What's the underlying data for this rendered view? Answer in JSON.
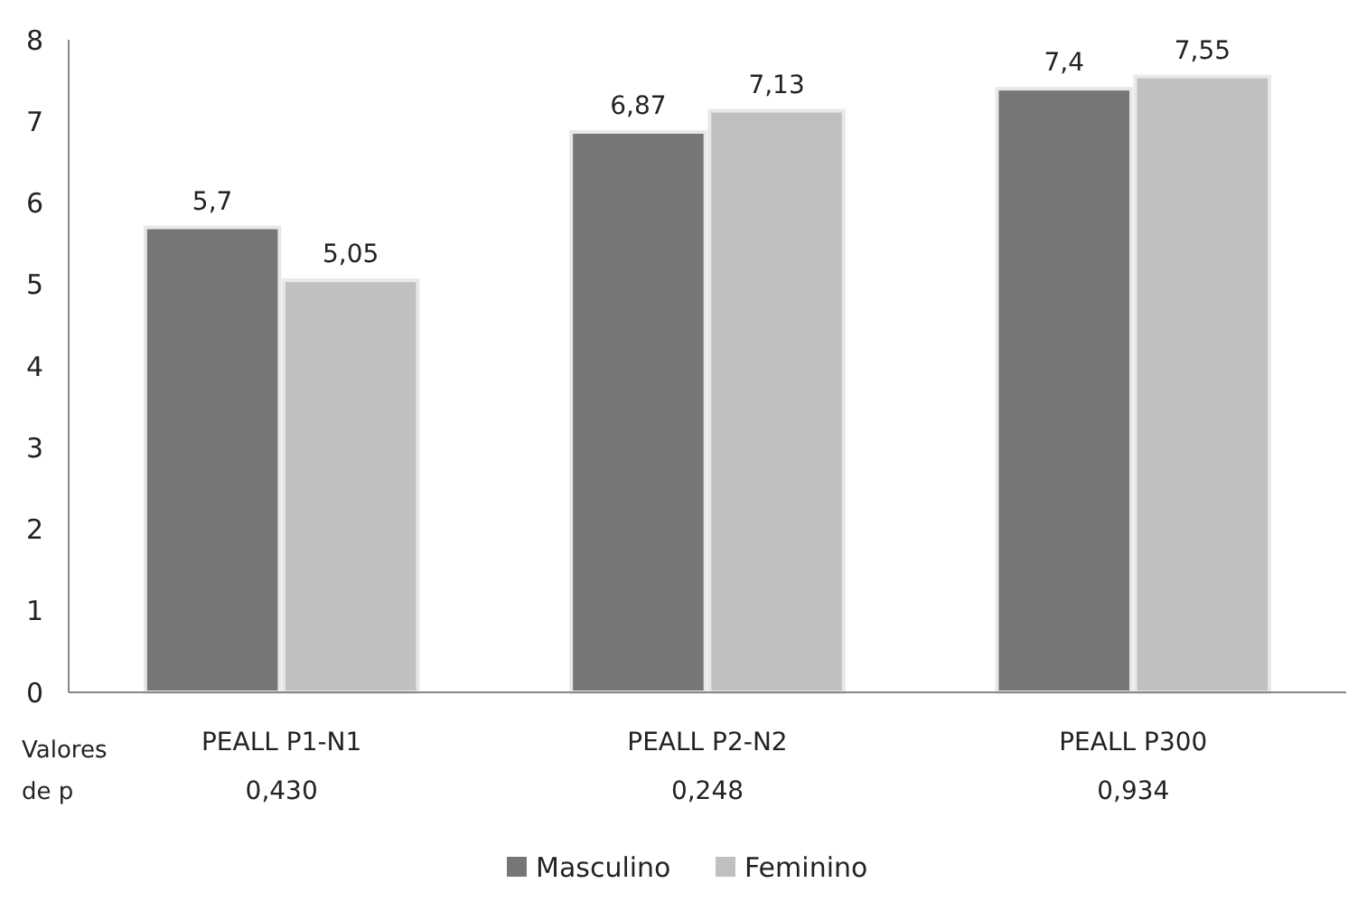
{
  "chart_data": {
    "type": "bar",
    "categories": [
      "PEALL P1-N1\n0,430",
      "PEALL P2-N2\n0,248",
      "PEALL P300\n0,934"
    ],
    "series": [
      {
        "name": "Masculino",
        "color": "#767676",
        "values": [
          5.7,
          6.87,
          7.4
        ],
        "value_labels": [
          "5,7",
          "6,87",
          "7,4"
        ]
      },
      {
        "name": "Feminino",
        "color": "#c0c0c0",
        "values": [
          5.05,
          7.13,
          7.55
        ],
        "value_labels": [
          "5,05",
          "7,13",
          "7,55"
        ]
      }
    ],
    "ylim": [
      0,
      8
    ],
    "yticks": [
      0,
      1,
      2,
      3,
      4,
      5,
      6,
      7,
      8
    ],
    "grid": false,
    "legend": "bottom",
    "annotations": [
      "Valores\nde p"
    ]
  }
}
